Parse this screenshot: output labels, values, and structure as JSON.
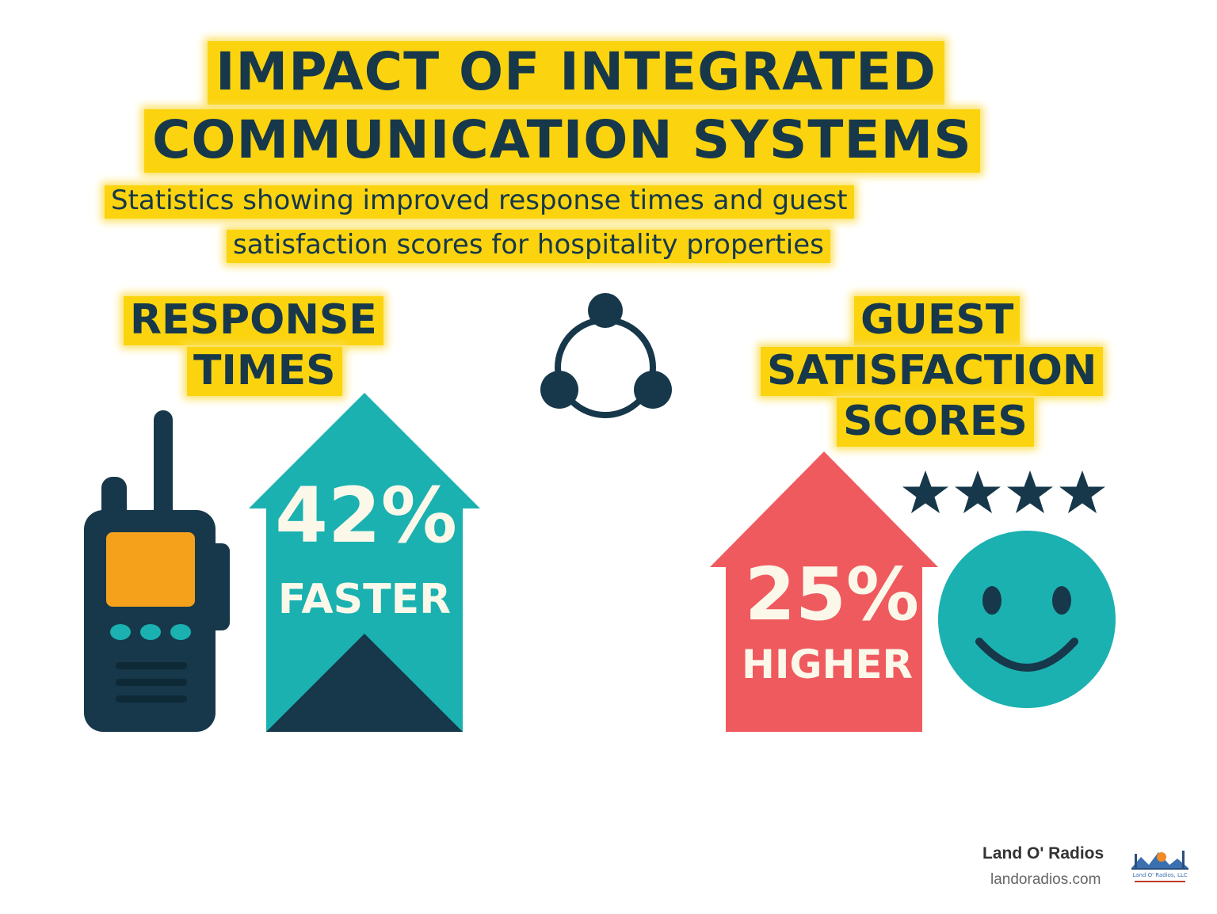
{
  "title": {
    "line1": "IMPACT OF INTEGRATED",
    "line2": "COMMUNICATION SYSTEMS"
  },
  "subtitle": {
    "line1": "Statistics showing improved response times and guest",
    "line2": "satisfaction scores for hospitality properties"
  },
  "response_section": {
    "heading_line1": "RESPONSE",
    "heading_line2": "TIMES",
    "stat_value": "42%",
    "stat_label": "FASTER",
    "icon": "walkie-talkie-icon"
  },
  "guest_section": {
    "heading_line1": "GUEST",
    "heading_line2": "SATISFACTION",
    "heading_line3": "SCORES",
    "stat_value": "25%",
    "stat_label": "HIGHER",
    "stars_shown": 4,
    "icon": "smiley-face-icon"
  },
  "center_icon": "network-cycle-icon",
  "footer": {
    "brand": "Land O' Radios",
    "url": "landoradios.com",
    "logo_text": "Land O' Radios, LLC"
  },
  "colors": {
    "highlight_yellow": "#fbd40f",
    "navy": "#17384a",
    "teal": "#1bb1b0",
    "coral_red": "#ef5a5f",
    "orange_screen": "#f6a11c",
    "cream_text": "#fbf8ea"
  }
}
